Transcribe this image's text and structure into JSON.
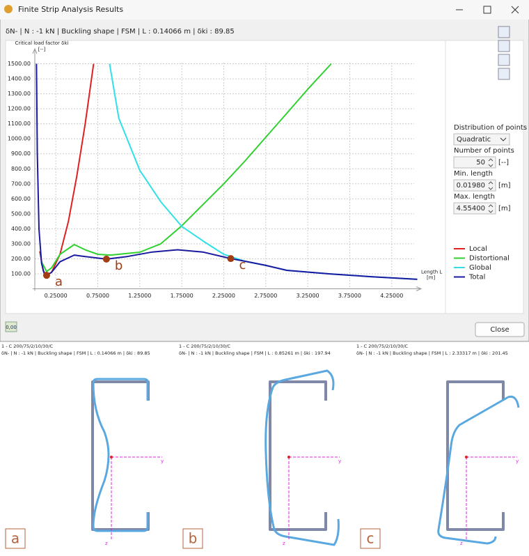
{
  "window": {
    "title": "Finite Strip Analysis Results"
  },
  "chart_data": {
    "type": "line",
    "subtitle": "δN- | N : -1 kN | Buckling shape | FSM | L : 0.14066 m | δki : 89.85",
    "y_label": "Critical load factor δki",
    "y_unit": "[--]",
    "x_label": "Length L",
    "x_unit": "[m]",
    "xlim": [
      0,
      4.6
    ],
    "ylim": [
      0,
      1600
    ],
    "grid": true,
    "legend": "right",
    "xticks": [
      {
        "value": 0.25,
        "label": "0.25000"
      },
      {
        "value": 0.75,
        "label": "0.75000"
      },
      {
        "value": 1.25,
        "label": "1.25000"
      },
      {
        "value": 1.75,
        "label": "1.75000"
      },
      {
        "value": 2.25,
        "label": "2.25000"
      },
      {
        "value": 2.75,
        "label": "2.75000"
      },
      {
        "value": 3.25,
        "label": "3.25000"
      },
      {
        "value": 3.75,
        "label": "3.75000"
      },
      {
        "value": 4.25,
        "label": "4.25000"
      }
    ],
    "yticks": [
      {
        "value": 100,
        "label": "100.00"
      },
      {
        "value": 200,
        "label": "200.00"
      },
      {
        "value": 300,
        "label": "300.00"
      },
      {
        "value": 400,
        "label": "400.00"
      },
      {
        "value": 500,
        "label": "500.00"
      },
      {
        "value": 600,
        "label": "600.00"
      },
      {
        "value": 700,
        "label": "700.00"
      },
      {
        "value": 800,
        "label": "800.00"
      },
      {
        "value": 900,
        "label": "900.00"
      },
      {
        "value": 1000,
        "label": "1000.00"
      },
      {
        "value": 1100,
        "label": "1100.00"
      },
      {
        "value": 1200,
        "label": "1200.00"
      },
      {
        "value": 1300,
        "label": "1300.00"
      },
      {
        "value": 1400,
        "label": "1400.00"
      },
      {
        "value": 1500,
        "label": "1500.00"
      }
    ],
    "series": [
      {
        "name": "Local",
        "color": "#e02020",
        "x": [
          0.06,
          0.1,
          0.14,
          0.2,
          0.3,
          0.4,
          0.5,
          0.6,
          0.7
        ],
        "values": [
          250,
          120,
          90,
          110,
          230,
          450,
          750,
          1100,
          1500
        ]
      },
      {
        "name": "Distortional",
        "color": "#30d030",
        "x": [
          0.08,
          0.14,
          0.2,
          0.3,
          0.47,
          0.6,
          0.75,
          0.9,
          1.25,
          1.5,
          1.75,
          2.0,
          2.25,
          2.5,
          2.75,
          3.0,
          3.25,
          3.53
        ],
        "values": [
          180,
          115,
          140,
          230,
          295,
          260,
          230,
          225,
          244,
          300,
          420,
          560,
          700,
          850,
          1010,
          1170,
          1330,
          1500
        ]
      },
      {
        "name": "Global",
        "color": "#30e0e8",
        "x": [
          0.89,
          1.0,
          1.25,
          1.5,
          1.75,
          2.0,
          2.25,
          2.5,
          2.75,
          3.0,
          3.5,
          4.0,
          4.554
        ],
        "values": [
          1500,
          1137,
          790,
          580,
          416,
          320,
          230,
          184,
          156,
          123,
          100,
          81,
          63
        ]
      },
      {
        "name": "Total",
        "color": "#1a1aa0",
        "x": [
          0.02,
          0.03,
          0.05,
          0.08,
          0.11,
          0.14066,
          0.2,
          0.3,
          0.47,
          0.6,
          0.85261,
          1.1,
          1.4,
          1.7,
          2.0,
          2.33317,
          2.5,
          2.75,
          3.0,
          3.5,
          4.0,
          4.554
        ],
        "values": [
          1500,
          900,
          400,
          170,
          105,
          89.85,
          110,
          180,
          225,
          215,
          197.94,
          215,
          245,
          260,
          245,
          201.45,
          184,
          156,
          123,
          100,
          81,
          63
        ]
      }
    ],
    "markers": [
      {
        "label": "a",
        "x": 0.14066,
        "value": 89.85
      },
      {
        "label": "b",
        "x": 0.85261,
        "value": 197.94
      },
      {
        "label": "c",
        "x": 2.33317,
        "value": 201.45
      }
    ]
  },
  "settings_panel": {
    "distribution_label": "Distribution of points",
    "distribution": "Quadratic",
    "number_label": "Number of points",
    "number": "50",
    "number_unit": "[--]",
    "min_label": "Min. length",
    "min": "0.01980",
    "min_unit": "[m]",
    "max_label": "Max. length",
    "max": "4.55400",
    "max_unit": "[m]"
  },
  "footer": {
    "icon_text": "0,00",
    "close": "Close"
  },
  "sections": [
    {
      "caption": "1 - C 200/75/2/10/30/C",
      "info": "δN- | N : -1 kN | Buckling shape | FSM | L : 0.14066 m | δki : 89.85",
      "label": "a",
      "y_axis": "y",
      "z_axis": "z"
    },
    {
      "caption": "1 - C 200/75/2/10/30/C",
      "info": "δN- | N : -1 kN | Buckling shape | FSM | L : 0.85261 m | δki : 197.94",
      "label": "b",
      "y_axis": "y",
      "z_axis": "z"
    },
    {
      "caption": "1 - C 200/75/2/10/30/C",
      "info": "δN- | N : -1 kN | Buckling shape | FSM | L : 2.33317 m | δki : 201.45",
      "label": "c",
      "y_axis": "y",
      "z_axis": "z"
    }
  ]
}
